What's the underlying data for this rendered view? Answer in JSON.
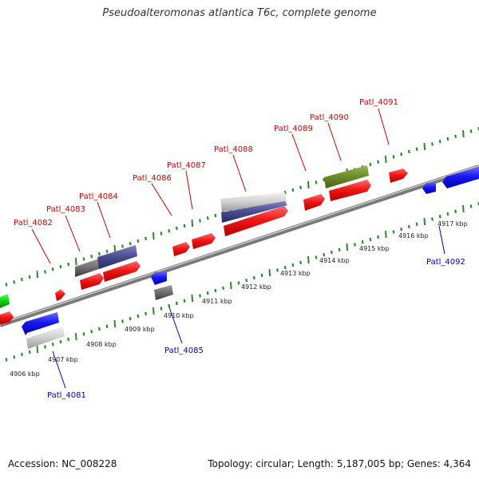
{
  "title": "Pseudoalteromonas atlantica T6c, complete genome",
  "footer": {
    "accession": "Accession: NC_008228",
    "summary": "Topology: circular; Length: 5,187,005 bp; Genes: 4,364"
  },
  "colors": {
    "forward_gene": "#e01010",
    "reverse_gene": "#1515e0",
    "forward_label": "#cc0000",
    "reverse_label": "#0000bb",
    "backbone": "#888888",
    "tick": "#2a8a2a"
  },
  "kbp_labels": [
    "4906 kbp",
    "4907 kbp",
    "4908 kbp",
    "4909 kbp",
    "4910 kbp",
    "4911 kbp",
    "4912 kbp",
    "4913 kbp",
    "4914 kbp",
    "4915 kbp",
    "4916 kbp",
    "4917 kbp"
  ],
  "forward_gene_labels": [
    "Patl_4082",
    "Patl_4083",
    "Patl_4084",
    "Patl_4086",
    "Patl_4087",
    "Patl_4088",
    "Patl_4089",
    "Patl_4090",
    "Patl_4091"
  ],
  "reverse_gene_labels": [
    "Patl_4081",
    "Patl_4085",
    "Patl_4092"
  ]
}
